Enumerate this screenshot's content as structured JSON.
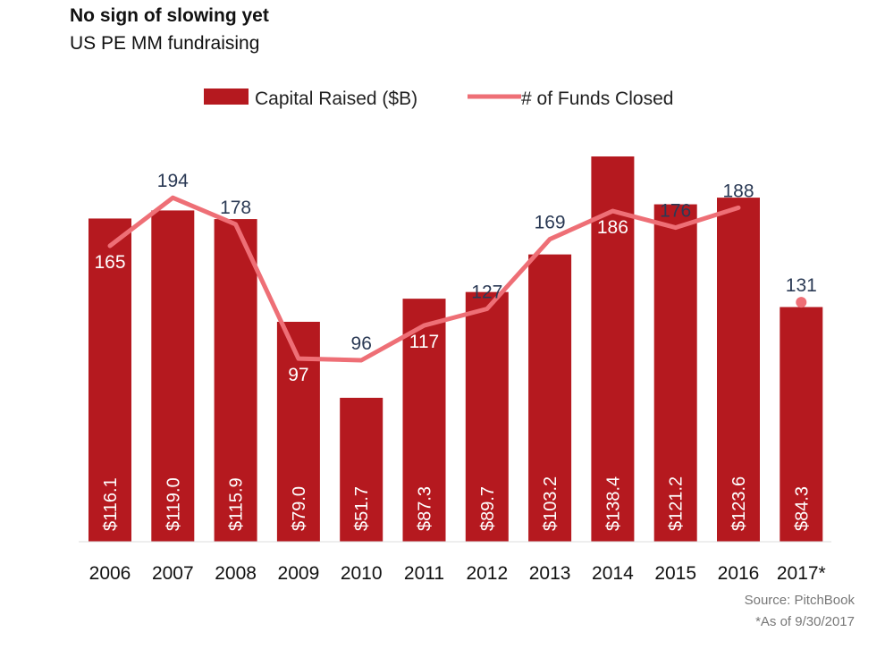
{
  "title": "No sign of slowing yet",
  "subtitle": "US PE MM fundraising",
  "source": "Source: PitchBook",
  "footnote": "*As of 9/30/2017",
  "colors": {
    "bar": "#b5191f",
    "line": "#ee6f76",
    "dark_label": "#2b3a55",
    "light_label": "#ffffff"
  },
  "chart_data": {
    "type": "bar",
    "categories": [
      "2006",
      "2007",
      "2008",
      "2009",
      "2010",
      "2011",
      "2012",
      "2013",
      "2014",
      "2015",
      "2016",
      "2017*"
    ],
    "series": [
      {
        "name": "Capital Raised ($B)",
        "type": "bar",
        "values": [
          116.1,
          119.0,
          115.9,
          79.0,
          51.7,
          87.3,
          89.7,
          103.2,
          138.4,
          121.2,
          123.6,
          84.3
        ],
        "labels": [
          "$116.1",
          "$119.0",
          "$115.9",
          "$79.0",
          "$51.7",
          "$87.3",
          "$89.7",
          "$103.2",
          "$138.4",
          "$121.2",
          "$123.6",
          "$84.3"
        ]
      },
      {
        "name": "# of Funds Closed",
        "type": "line",
        "values": [
          165,
          194,
          178,
          97,
          96,
          117,
          127,
          169,
          186,
          176,
          188,
          131
        ],
        "labels": [
          "165",
          "194",
          "178",
          "97",
          "96",
          "117",
          "127",
          "169",
          "186",
          "176",
          "188",
          "131"
        ],
        "label_on_bar": [
          true,
          false,
          false,
          true,
          false,
          true,
          false,
          false,
          true,
          false,
          false,
          false
        ]
      }
    ],
    "legend_position": "top",
    "grid": false
  }
}
